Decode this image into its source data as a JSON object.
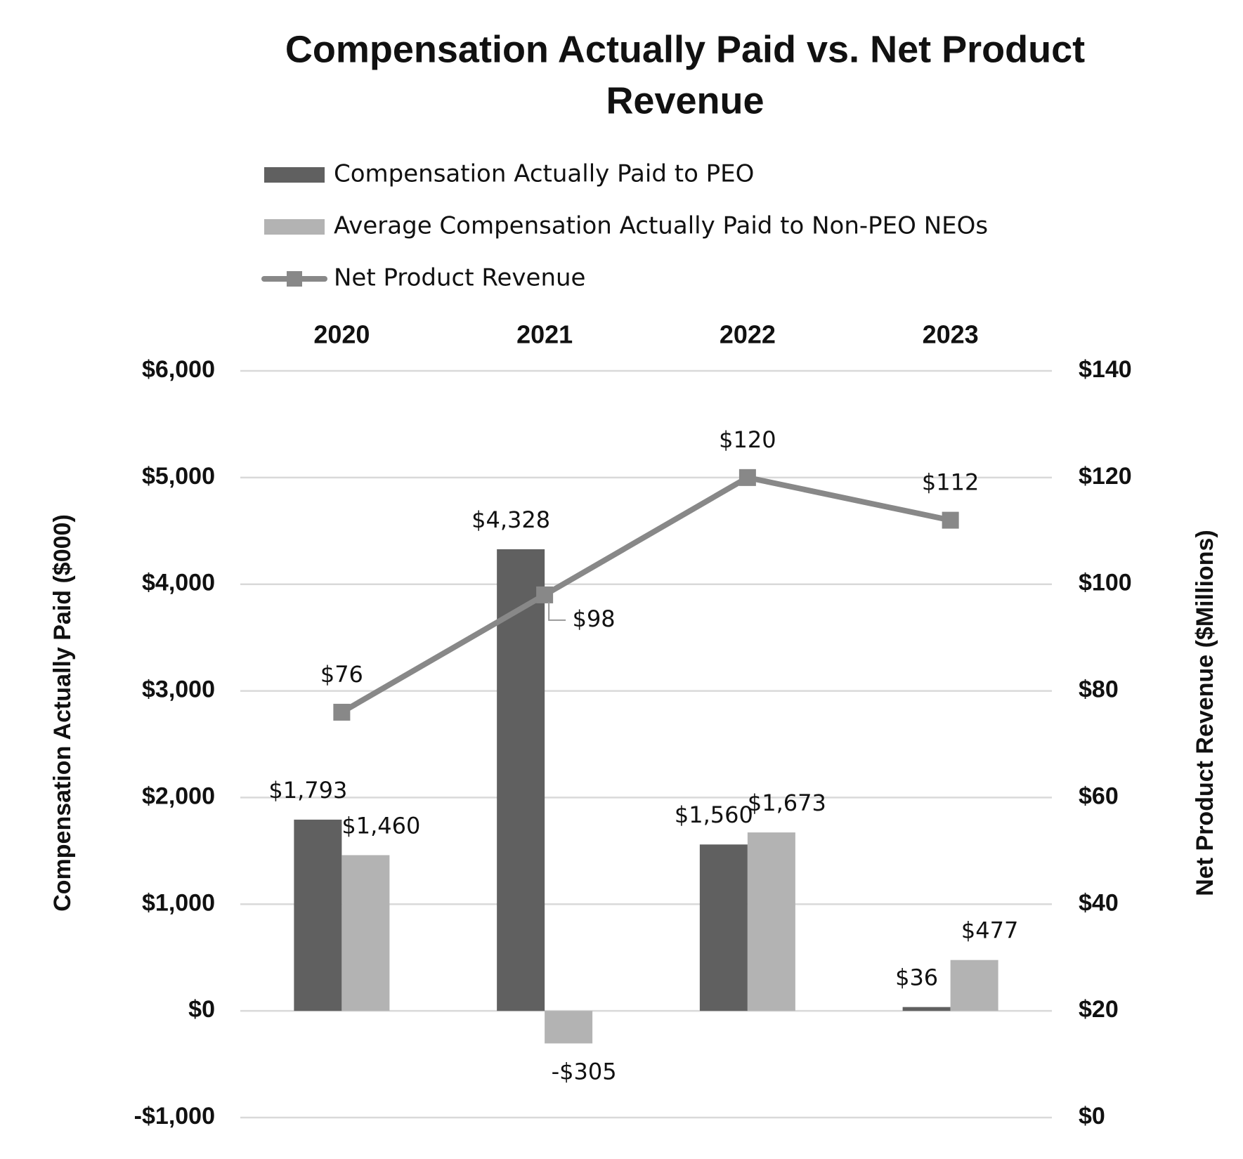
{
  "chart_data": {
    "type": "bar_line",
    "title": [
      "Compensation Actually Paid vs. Net Product",
      "Revenue"
    ],
    "categories": [
      "2020",
      "2021",
      "2022",
      "2023"
    ],
    "series": [
      {
        "name": "Compensation Actually Paid to PEO",
        "type": "bar",
        "color": "#606060",
        "axis": "y",
        "values": [
          1793,
          4328,
          1560,
          36
        ],
        "value_labels": [
          "$1,793",
          "$4,328",
          "$1,560",
          "$36"
        ]
      },
      {
        "name": "Average Compensation Actually Paid to Non-PEO NEOs",
        "type": "bar",
        "color": "#b3b3b3",
        "axis": "y",
        "values": [
          1460,
          -305,
          1673,
          477
        ],
        "value_labels": [
          "$1,460",
          "-$305",
          "$1,673",
          "$477"
        ]
      },
      {
        "name": "Net Product Revenue",
        "type": "line",
        "color": "#888888",
        "axis": "y2",
        "values": [
          76,
          98,
          120,
          112
        ],
        "value_labels": [
          "$76",
          "$98",
          "$120",
          "$112"
        ]
      }
    ],
    "ylabel": "Compensation Actually Paid ($000)",
    "y2label": "Net Product Revenue ($Millions)",
    "ylim": [
      -1000,
      6000
    ],
    "yticks": [
      {
        "value": -1000,
        "label": "-$1,000"
      },
      {
        "value": 0,
        "label": "$0"
      },
      {
        "value": 1000,
        "label": "$1,000"
      },
      {
        "value": 2000,
        "label": "$2,000"
      },
      {
        "value": 3000,
        "label": "$3,000"
      },
      {
        "value": 4000,
        "label": "$4,000"
      },
      {
        "value": 5000,
        "label": "$5,000"
      },
      {
        "value": 6000,
        "label": "$6,000"
      }
    ],
    "y2lim": [
      0,
      140
    ],
    "y2ticks": [
      {
        "value": 0,
        "label": "$0"
      },
      {
        "value": 20,
        "label": "$20"
      },
      {
        "value": 40,
        "label": "$40"
      },
      {
        "value": 60,
        "label": "$60"
      },
      {
        "value": 80,
        "label": "$80"
      },
      {
        "value": 100,
        "label": "$100"
      },
      {
        "value": 120,
        "label": "$120"
      },
      {
        "value": 140,
        "label": "$140"
      }
    ],
    "grid": true,
    "legend": "top"
  }
}
